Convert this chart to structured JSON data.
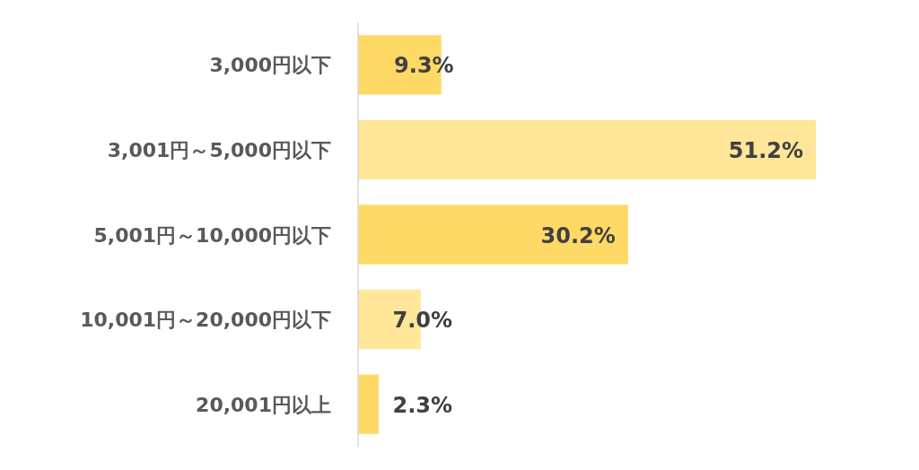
{
  "chart_data": {
    "type": "bar",
    "orientation": "horizontal",
    "categories": [
      "3,000円以下",
      "3,001円～5,000円以下",
      "5,001円～10,000円以下",
      "10,001円～20,000円以下",
      "20,001円以上"
    ],
    "values": [
      9.3,
      51.2,
      30.2,
      7.0,
      2.3
    ],
    "value_labels": [
      "9.3%",
      "51.2%",
      "30.2%",
      "7.0%",
      "2.3%"
    ],
    "colors": [
      "#ffd966",
      "#ffe699",
      "#ffd966",
      "#ffe699",
      "#ffd966"
    ],
    "tick_labels": "y"
  }
}
